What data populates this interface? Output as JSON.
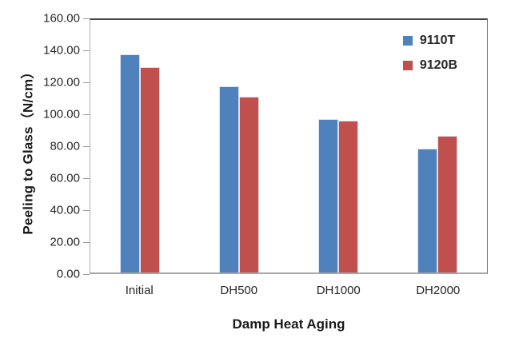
{
  "chart_data": {
    "type": "bar",
    "title": "",
    "categories": [
      "Initial",
      "DH500",
      "DH1000",
      "DH2000"
    ],
    "series": [
      {
        "name": "9110T",
        "color": "#4F81BD",
        "values": [
          136.5,
          116.5,
          96.0,
          77.5
        ]
      },
      {
        "name": "9120B",
        "color": "#C0504D",
        "values": [
          128.5,
          110.0,
          95.0,
          85.5
        ]
      }
    ],
    "xlabel": "Damp Heat Aging",
    "ylabel": "Peeling to Glass（N/cm）",
    "ylim": [
      0,
      160
    ],
    "ytick_step": 20,
    "ytick_labels": [
      "0.00",
      "20.00",
      "40.00",
      "60.00",
      "80.00",
      "100.00",
      "120.00",
      "140.00",
      "160.00"
    ],
    "grid": false,
    "legend_position": "top-right-inside"
  }
}
